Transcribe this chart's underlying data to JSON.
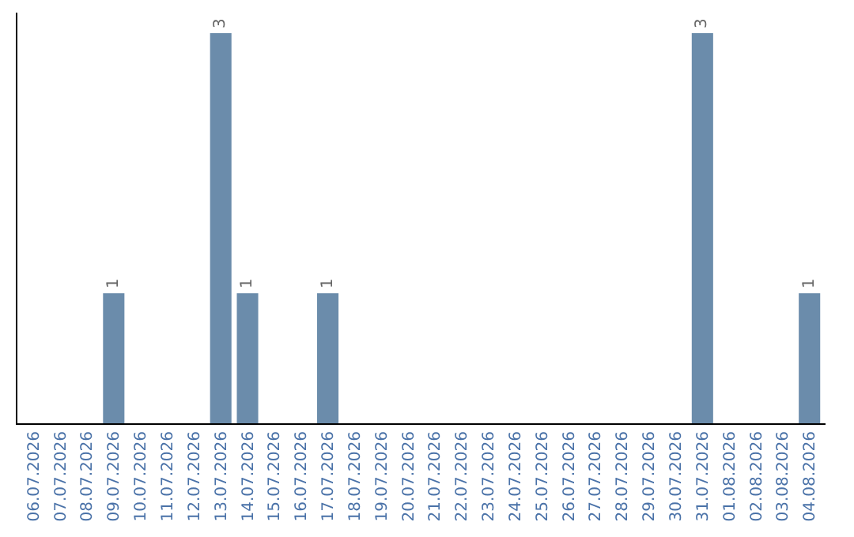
{
  "chart_data": {
    "type": "bar",
    "categories": [
      "06.07.2026",
      "07.07.2026",
      "08.07.2026",
      "09.07.2026",
      "10.07.2026",
      "11.07.2026",
      "12.07.2026",
      "13.07.2026",
      "14.07.2026",
      "15.07.2026",
      "16.07.2026",
      "17.07.2026",
      "18.07.2026",
      "19.07.2026",
      "20.07.2026",
      "21.07.2026",
      "22.07.2026",
      "23.07.2026",
      "24.07.2026",
      "25.07.2026",
      "26.07.2026",
      "27.07.2026",
      "28.07.2026",
      "29.07.2026",
      "30.07.2026",
      "31.07.2026",
      "01.08.2026",
      "02.08.2026",
      "03.08.2026",
      "04.08.2026"
    ],
    "values": [
      0,
      0,
      0,
      1,
      0,
      0,
      0,
      3,
      1,
      0,
      0,
      1,
      0,
      0,
      0,
      0,
      0,
      0,
      0,
      0,
      0,
      0,
      0,
      0,
      0,
      3,
      0,
      0,
      0,
      1
    ],
    "value_labels": [
      null,
      null,
      null,
      "1",
      null,
      null,
      null,
      "3",
      "1",
      null,
      null,
      "1",
      null,
      null,
      null,
      null,
      null,
      null,
      null,
      null,
      null,
      null,
      null,
      null,
      null,
      "3",
      null,
      null,
      null,
      "1"
    ],
    "color": "#6b8cab",
    "grid": false,
    "tick_labels": "x"
  }
}
